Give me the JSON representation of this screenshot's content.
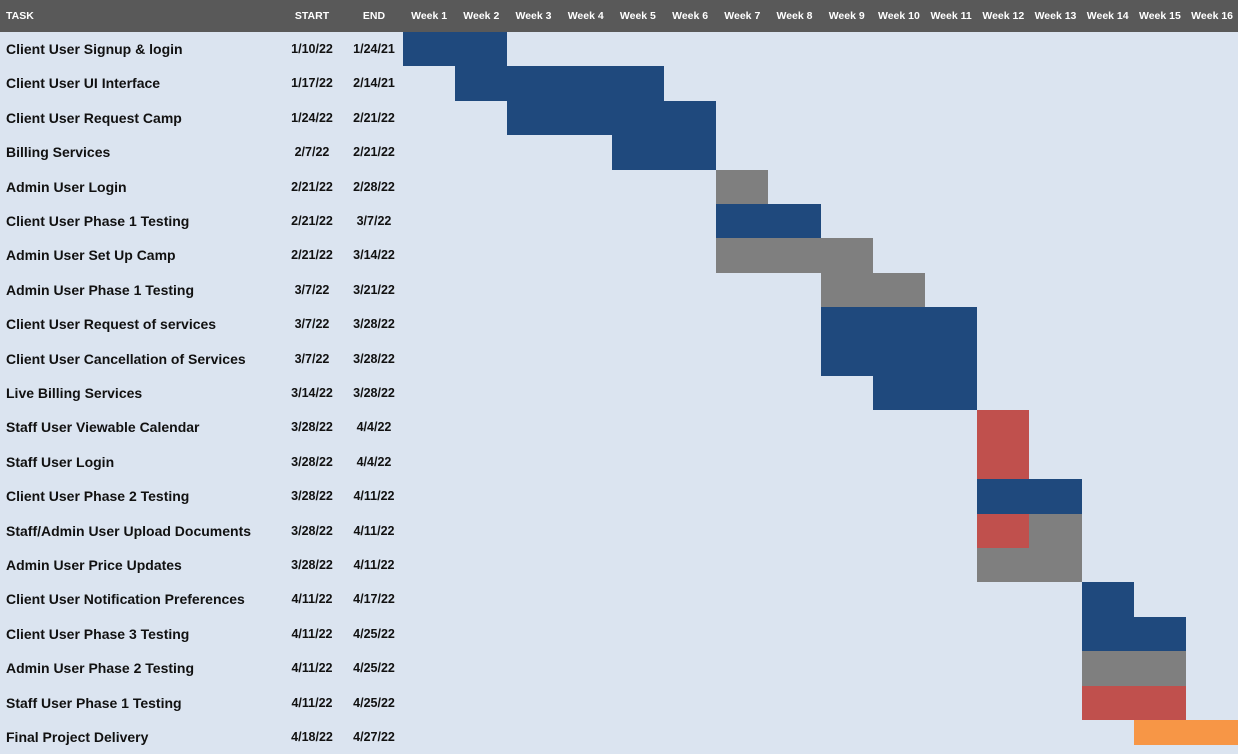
{
  "colors": {
    "background": "#dbe4f0",
    "header": "#595959",
    "header_text": "#ffffff",
    "blue": "#1f497d",
    "gray": "#7f7f7f",
    "red": "#c0504d",
    "orange": "#f79646"
  },
  "chart_data": {
    "type": "gantt",
    "headers": {
      "task": "TASK",
      "start": "START",
      "end": "END"
    },
    "weeks": [
      "Week 1",
      "Week 2",
      "Week 3",
      "Week 4",
      "Week 5",
      "Week 6",
      "Week 7",
      "Week 8",
      "Week 9",
      "Week 10",
      "Week 11",
      "Week 12",
      "Week 13",
      "Week 14",
      "Week 15",
      "Week 16"
    ],
    "tasks": [
      {
        "name": "Client User Signup & login",
        "start": "1/10/22",
        "end": "1/24/21",
        "segments": [
          {
            "from": 1,
            "to": 2,
            "color": "blue"
          }
        ]
      },
      {
        "name": "Client User UI Interface",
        "start": "1/17/22",
        "end": "2/14/21",
        "segments": [
          {
            "from": 2,
            "to": 5,
            "color": "blue"
          }
        ]
      },
      {
        "name": "Client User Request Camp",
        "start": "1/24/22",
        "end": "2/21/22",
        "segments": [
          {
            "from": 3,
            "to": 6,
            "color": "blue"
          }
        ]
      },
      {
        "name": "Billing Services",
        "start": "2/7/22",
        "end": "2/21/22",
        "segments": [
          {
            "from": 5,
            "to": 6,
            "color": "blue"
          }
        ]
      },
      {
        "name": "Admin User Login",
        "start": "2/21/22",
        "end": "2/28/22",
        "segments": [
          {
            "from": 7,
            "to": 7,
            "color": "gray"
          }
        ]
      },
      {
        "name": "Client User Phase 1 Testing",
        "start": "2/21/22",
        "end": "3/7/22",
        "segments": [
          {
            "from": 7,
            "to": 8,
            "color": "blue"
          }
        ]
      },
      {
        "name": "Admin User Set Up Camp",
        "start": "2/21/22",
        "end": "3/14/22",
        "segments": [
          {
            "from": 7,
            "to": 9,
            "color": "gray"
          }
        ]
      },
      {
        "name": "Admin User Phase 1 Testing",
        "start": "3/7/22",
        "end": "3/21/22",
        "segments": [
          {
            "from": 9,
            "to": 10,
            "color": "gray"
          }
        ]
      },
      {
        "name": "Client User Request of services",
        "start": "3/7/22",
        "end": "3/28/22",
        "segments": [
          {
            "from": 9,
            "to": 11,
            "color": "blue"
          }
        ]
      },
      {
        "name": "Client User Cancellation of Services",
        "start": "3/7/22",
        "end": "3/28/22",
        "segments": [
          {
            "from": 9,
            "to": 11,
            "color": "blue"
          }
        ]
      },
      {
        "name": "Live Billing Services",
        "start": "3/14/22",
        "end": "3/28/22",
        "segments": [
          {
            "from": 10,
            "to": 11,
            "color": "blue"
          }
        ]
      },
      {
        "name": "Staff User Viewable Calendar",
        "start": "3/28/22",
        "end": "4/4/22",
        "segments": [
          {
            "from": 12,
            "to": 12,
            "color": "red"
          }
        ]
      },
      {
        "name": "Staff User Login",
        "start": "3/28/22",
        "end": "4/4/22",
        "segments": [
          {
            "from": 12,
            "to": 12,
            "color": "red"
          }
        ]
      },
      {
        "name": "Client User Phase 2 Testing",
        "start": "3/28/22",
        "end": "4/11/22",
        "segments": [
          {
            "from": 12,
            "to": 13,
            "color": "blue"
          }
        ]
      },
      {
        "name": "Staff/Admin User Upload Documents",
        "start": "3/28/22",
        "end": "4/11/22",
        "segments": [
          {
            "from": 12,
            "to": 12,
            "color": "red"
          },
          {
            "from": 13,
            "to": 13,
            "color": "gray"
          }
        ]
      },
      {
        "name": "Admin User Price Updates",
        "start": "3/28/22",
        "end": "4/11/22",
        "segments": [
          {
            "from": 12,
            "to": 13,
            "color": "gray"
          }
        ]
      },
      {
        "name": "Client User Notification Preferences",
        "start": "4/11/22",
        "end": "4/17/22",
        "segments": [
          {
            "from": 14,
            "to": 14,
            "color": "blue"
          }
        ]
      },
      {
        "name": "Client User Phase 3 Testing",
        "start": "4/11/22",
        "end": "4/25/22",
        "segments": [
          {
            "from": 14,
            "to": 15,
            "color": "blue"
          }
        ]
      },
      {
        "name": "Admin User Phase 2 Testing",
        "start": "4/11/22",
        "end": "4/25/22",
        "segments": [
          {
            "from": 14,
            "to": 15,
            "color": "gray"
          }
        ]
      },
      {
        "name": "Staff User Phase 1 Testing",
        "start": "4/11/22",
        "end": "4/25/22",
        "segments": [
          {
            "from": 14,
            "to": 15,
            "color": "red"
          }
        ]
      },
      {
        "name": "Final Project Delivery",
        "start": "4/18/22",
        "end": "4/27/22",
        "segments": [
          {
            "from": 15,
            "to": 16,
            "color": "orange"
          }
        ]
      }
    ]
  }
}
